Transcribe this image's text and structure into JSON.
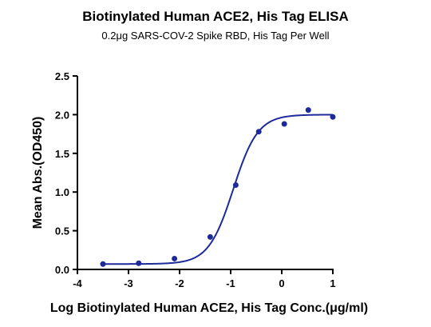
{
  "chart_data": {
    "type": "scatter",
    "title": "Biotinylated Human ACE2, His Tag ELISA",
    "subtitle": "0.2μg SARS-COV-2 Spike RBD, His Tag Per Well",
    "xlabel": "Log Biotinylated Human ACE2, His Tag Conc.(μg/ml)",
    "ylabel": "Mean Abs.(OD450)",
    "xlim": [
      -4,
      1
    ],
    "ylim": [
      0,
      2.5
    ],
    "x_ticks": [
      -4,
      -3,
      -2,
      -1,
      0,
      1
    ],
    "x_tick_labels": [
      "-4",
      "-3",
      "-2",
      "-1",
      "0",
      "1"
    ],
    "y_ticks": [
      0,
      0.5,
      1,
      1.5,
      2,
      2.5
    ],
    "y_tick_labels": [
      "0.0",
      "0.5",
      "1.0",
      "1.5",
      "2.0",
      "2.5"
    ],
    "grid": false,
    "legend": "none",
    "series": [
      {
        "x": [
          -3.5,
          -2.8,
          -2.1,
          -1.4,
          -0.9,
          -0.45,
          0.05,
          0.52,
          1.0
        ],
        "y": [
          0.07,
          0.08,
          0.14,
          0.42,
          1.09,
          1.78,
          1.88,
          2.06,
          1.97
        ]
      }
    ],
    "fit_curve": {
      "model": "4PL",
      "bottom": 0.07,
      "top": 2.0,
      "log_ec50": -0.95,
      "hill_slope": 1.8
    },
    "color": "#1f2a9a"
  }
}
